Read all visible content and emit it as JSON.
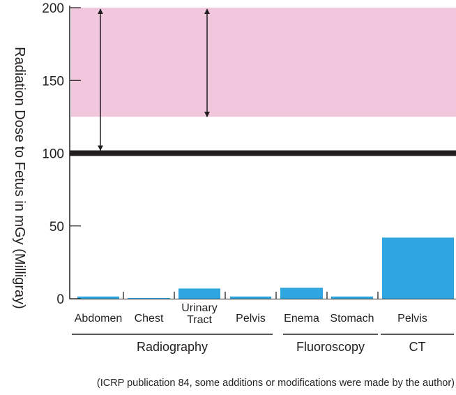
{
  "chart_data": {
    "type": "bar",
    "ylabel": "Radiation Dose to Fetus in mGy (Milligray)",
    "ylim": [
      0,
      200
    ],
    "yticks": [
      0,
      50,
      100,
      150,
      200
    ],
    "grid": false,
    "categories": [
      "Abdomen",
      "Chest",
      "Urinary Tract",
      "Pelvis",
      "Enema",
      "Stomach",
      "Pelvis"
    ],
    "category_lines": [
      [
        "Abdomen"
      ],
      [
        "Chest"
      ],
      [
        "Urinary",
        "Tract"
      ],
      [
        "Pelvis"
      ],
      [
        "Enema"
      ],
      [
        "Stomach"
      ],
      [
        "Pelvis"
      ]
    ],
    "values": [
      1.5,
      0.5,
      7,
      1.5,
      7.5,
      1.5,
      42
    ],
    "groups": [
      {
        "label": "Radiography",
        "members": [
          0,
          1,
          2,
          3
        ]
      },
      {
        "label": "Fluoroscopy",
        "members": [
          4,
          5
        ]
      },
      {
        "label": "CT",
        "members": [
          6
        ]
      }
    ],
    "threshold_line": 100,
    "shaded_band": [
      125,
      200
    ],
    "arrows": [
      [
        100,
        200
      ],
      [
        125,
        200
      ]
    ],
    "colors": {
      "bar": "#2fa6e0",
      "band": "#f1c7de",
      "line": "#231f20"
    },
    "footnote": "(ICRP publication 84, some additions or modifications were made by the author)"
  }
}
